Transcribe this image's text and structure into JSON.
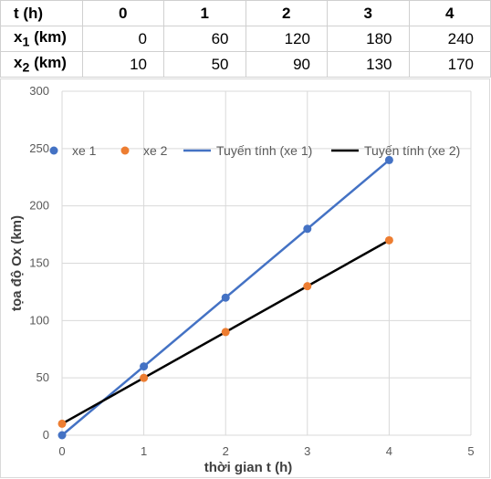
{
  "table": {
    "header": [
      "t (h)",
      "0",
      "1",
      "2",
      "3",
      "4"
    ],
    "rows": [
      {
        "label_main": "x",
        "label_sub": "1",
        "label_unit": " (km)",
        "values": [
          "0",
          "60",
          "120",
          "180",
          "240"
        ]
      },
      {
        "label_main": "x",
        "label_sub": "2",
        "label_unit": " (km)",
        "values": [
          "10",
          "50",
          "90",
          "130",
          "170"
        ]
      }
    ]
  },
  "chart_data": {
    "type": "scatter",
    "xlabel": "thời gian t (h)",
    "ylabel": "tọa độ Ox (km)",
    "xlim": [
      0,
      5
    ],
    "ylim": [
      0,
      300
    ],
    "xticks": [
      "0",
      "1",
      "2",
      "3",
      "4",
      "5"
    ],
    "yticks": [
      "0",
      "50",
      "100",
      "150",
      "200",
      "250",
      "300"
    ],
    "grid": true,
    "legend_position": "top",
    "legend": [
      "xe 1",
      "xe 2",
      "Tuyến tính (xe 1)",
      "Tuyến tính (xe 2)"
    ],
    "series": [
      {
        "name": "xe 1",
        "x": [
          0,
          1,
          2,
          3,
          4
        ],
        "y": [
          0,
          60,
          120,
          180,
          240
        ],
        "color": "#4472C4"
      },
      {
        "name": "xe 2",
        "x": [
          0,
          1,
          2,
          3,
          4
        ],
        "y": [
          10,
          50,
          90,
          130,
          170
        ],
        "color": "#ED7D31"
      }
    ],
    "trendlines": [
      {
        "name": "Tuyến tính (xe 1)",
        "x": [
          0,
          4
        ],
        "y": [
          0,
          240
        ],
        "color": "#4472C4"
      },
      {
        "name": "Tuyến tính (xe 2)",
        "x": [
          0,
          4
        ],
        "y": [
          10,
          170
        ],
        "color": "#000000"
      }
    ]
  }
}
